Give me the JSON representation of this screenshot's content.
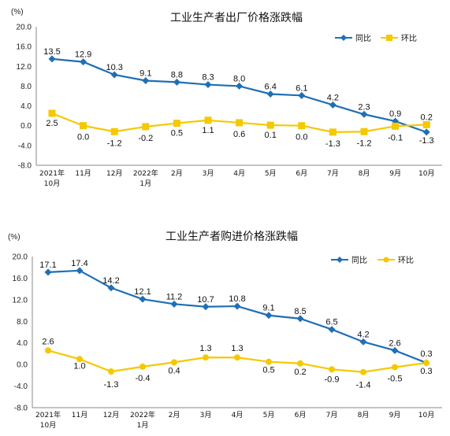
{
  "chart_data": [
    {
      "type": "line",
      "title": "工业生产者出厂价格涨跌幅",
      "unit": "(%)",
      "categories": [
        [
          "2021年",
          "10月"
        ],
        [
          "11月"
        ],
        [
          "12月"
        ],
        [
          "2022年",
          "1月"
        ],
        [
          "2月"
        ],
        [
          "3月"
        ],
        [
          "4月"
        ],
        [
          "5月"
        ],
        [
          "6月"
        ],
        [
          "7月"
        ],
        [
          "8月"
        ],
        [
          "9月"
        ],
        [
          "10月"
        ]
      ],
      "y_ticks": [
        "20.0",
        "16.0",
        "12.0",
        "8.0",
        "4.0",
        "0.0",
        "-4.0",
        "-8.0"
      ],
      "ylim": [
        -8,
        20
      ],
      "legend_position": "top-right",
      "series": [
        {
          "name": "同比",
          "color": "#1f6fb5",
          "marker": "diamond",
          "values": [
            13.5,
            12.9,
            10.3,
            9.1,
            8.8,
            8.3,
            8.0,
            6.4,
            6.1,
            4.2,
            2.3,
            0.9,
            -1.3
          ],
          "labels": [
            "13.5",
            "12.9",
            "10.3",
            "9.1",
            "8.8",
            "8.3",
            "8.0",
            "6.4",
            "6.1",
            "4.2",
            "2.3",
            "0.9",
            "-1.3"
          ]
        },
        {
          "name": "环比",
          "color": "#f5c800",
          "marker": "square",
          "values": [
            2.5,
            0.0,
            -1.2,
            -0.2,
            0.5,
            1.1,
            0.6,
            0.1,
            0.0,
            -1.3,
            -1.2,
            -0.1,
            0.2
          ],
          "labels": [
            "2.5",
            "0.0",
            "-1.2",
            "-0.2",
            "0.5",
            "1.1",
            "0.6",
            "0.1",
            "0.0",
            "-1.3",
            "-1.2",
            "-0.1",
            "0.2"
          ]
        }
      ]
    },
    {
      "type": "line",
      "title": "工业生产者购进价格涨跌幅",
      "unit": "(%)",
      "categories": [
        [
          "2021年",
          "10月"
        ],
        [
          "11月"
        ],
        [
          "12月"
        ],
        [
          "2022年",
          "1月"
        ],
        [
          "2月"
        ],
        [
          "3月"
        ],
        [
          "4月"
        ],
        [
          "5月"
        ],
        [
          "6月"
        ],
        [
          "7月"
        ],
        [
          "8月"
        ],
        [
          "9月"
        ],
        [
          "10月"
        ]
      ],
      "y_ticks": [
        "20.0",
        "16.0",
        "12.0",
        "8.0",
        "4.0",
        "0.0",
        "-4.0",
        "-8.0"
      ],
      "ylim": [
        -8,
        20
      ],
      "legend_position": "top-right",
      "series": [
        {
          "name": "同比",
          "color": "#1f6fb5",
          "marker": "diamond",
          "values": [
            17.1,
            17.4,
            14.2,
            12.1,
            11.2,
            10.7,
            10.8,
            9.1,
            8.5,
            6.5,
            4.2,
            2.6,
            0.3
          ],
          "labels": [
            "17.1",
            "17.4",
            "14.2",
            "12.1",
            "11.2",
            "10.7",
            "10.8",
            "9.1",
            "8.5",
            "6.5",
            "4.2",
            "2.6",
            "0.3"
          ]
        },
        {
          "name": "环比",
          "color": "#f5c800",
          "marker": "circle",
          "values": [
            2.6,
            1.0,
            -1.3,
            -0.4,
            0.4,
            1.3,
            1.3,
            0.5,
            0.2,
            -0.9,
            -1.4,
            -0.5,
            0.3
          ],
          "labels": [
            "2.6",
            "1.0",
            "-1.3",
            "-0.4",
            "0.4",
            "1.3",
            "1.3",
            "0.5",
            "0.2",
            "-0.9",
            "-1.4",
            "-0.5",
            "0.3"
          ]
        }
      ]
    }
  ]
}
